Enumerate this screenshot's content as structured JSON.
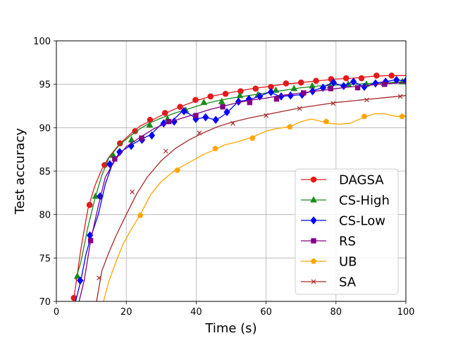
{
  "chart_data": {
    "type": "line",
    "xlabel": "Time (s)",
    "ylabel": "Test accuracy",
    "xlim": [
      0,
      100
    ],
    "ylim": [
      70,
      100
    ],
    "xticks": [
      0,
      20,
      40,
      60,
      80,
      100
    ],
    "yticks": [
      70,
      75,
      80,
      85,
      90,
      95,
      100
    ],
    "grid": true,
    "legend_position": "lower-right",
    "series": [
      {
        "name": "DAGSA",
        "color": "#e31a1c",
        "marker": "circle",
        "x": [
          5,
          7,
          9,
          11,
          13,
          15,
          18,
          21,
          24,
          27,
          30,
          33,
          36,
          40,
          44,
          48,
          52,
          56,
          60,
          65,
          70,
          75,
          80,
          85,
          90,
          95,
          100
        ],
        "y": [
          70.3,
          76,
          80.6,
          83.3,
          85.2,
          86.6,
          88.1,
          89.2,
          90.2,
          90.8,
          91.4,
          92,
          92.5,
          93.1,
          93.6,
          93.9,
          94.2,
          94.5,
          94.7,
          95,
          95.2,
          95.4,
          95.6,
          95.7,
          95.9,
          96,
          96
        ],
        "marker_x": [
          5.0,
          9.5,
          13.8,
          18.2,
          22.5,
          26.8,
          31.1,
          35.4,
          39.8,
          44.1,
          48.4,
          52.7,
          57.0,
          61.4,
          65.7,
          70.0,
          74.3,
          78.6,
          82.9,
          87.3,
          91.6,
          95.9
        ],
        "marker_y": [
          70.4,
          81.1,
          85.7,
          88.2,
          89.6,
          90.9,
          91.7,
          92.4,
          93.2,
          93.6,
          93.9,
          94.2,
          94.5,
          94.7,
          95.1,
          95.2,
          95.4,
          95.6,
          95.7,
          95.7,
          96.0,
          96.0
        ]
      },
      {
        "name": "CS-High",
        "color": "#1a8a1a",
        "marker": "triangle",
        "x": [
          5.5,
          7,
          9,
          11,
          13,
          15,
          18,
          21,
          24,
          27,
          30,
          34,
          38,
          42,
          46,
          50,
          55,
          60,
          65,
          70,
          75,
          80,
          85,
          90,
          95,
          100
        ],
        "y": [
          72.5,
          74.5,
          78.5,
          81.8,
          84.5,
          86.5,
          88,
          89,
          89.9,
          90.6,
          91.1,
          91.7,
          92.2,
          92.7,
          93.1,
          93.4,
          93.7,
          94,
          94.3,
          94.6,
          94.8,
          94.9,
          95,
          95.1,
          95.2,
          95.3
        ],
        "marker_x": [
          6.0,
          11.2,
          16.3,
          21.5,
          26.7,
          31.8,
          37.0,
          42.2,
          47.3,
          52.5,
          57.7,
          62.8,
          68.0,
          73.2,
          78.3,
          83.5,
          88.7,
          93.8,
          99.0
        ],
        "marker_y": [
          72.9,
          82.1,
          86.8,
          88.6,
          90.3,
          91.0,
          92.0,
          92.9,
          93.0,
          93.7,
          93.8,
          94.3,
          94.5,
          94.8,
          94.8,
          95.0,
          95.0,
          95.1,
          95.3
        ]
      },
      {
        "name": "CS-Low",
        "color": "#0000ff",
        "marker": "diamond",
        "x": [
          5.5,
          7,
          8.5,
          10,
          12,
          14,
          16,
          18,
          21,
          24,
          27,
          30,
          33,
          36,
          38,
          40,
          42.6,
          45.5,
          47,
          49,
          52,
          55,
          58,
          61,
          64,
          67,
          70,
          73,
          76,
          79,
          82,
          85,
          88,
          91,
          94,
          97,
          100
        ],
        "y": [
          70,
          72.4,
          75.5,
          77.6,
          80,
          83.5,
          85.8,
          87.1,
          87.9,
          88.6,
          89.2,
          90.4,
          90.7,
          91.9,
          91.6,
          91.0,
          91.2,
          90.9,
          91.2,
          91.8,
          93.0,
          93.2,
          93.6,
          94.1,
          93.6,
          93.7,
          93.8,
          94.2,
          94.6,
          95.2,
          94.8,
          95.3,
          94.7,
          95.1,
          95.3,
          95.5,
          95.4
        ],
        "marker_x": [
          6.8,
          9.6,
          12.5,
          15.3,
          18.1,
          21.4,
          24.5,
          27.3,
          30.7,
          33.7,
          36.5,
          39.9,
          42.7,
          45.6,
          48.8,
          52.1,
          55.1,
          58.2,
          61.4,
          64.3,
          67.0,
          70.3,
          73.3,
          76.3,
          79.3,
          82.2,
          85.0,
          88.1,
          91.3,
          94.2,
          97.3,
          100.0
        ],
        "marker_y": [
          72.4,
          77.6,
          82.1,
          85.8,
          87.2,
          87.9,
          88.6,
          89.1,
          90.5,
          90.7,
          91.9,
          91.0,
          91.2,
          90.9,
          91.8,
          93.0,
          93.3,
          93.6,
          94.1,
          93.6,
          93.7,
          93.8,
          94.2,
          94.6,
          95.2,
          94.8,
          95.3,
          94.7,
          95.1,
          95.3,
          95.5,
          95.4
        ]
      },
      {
        "name": "RS",
        "color": "#800080",
        "marker": "square",
        "x": [
          6.5,
          8,
          9.8,
          12,
          14,
          17,
          20,
          24,
          28,
          32,
          36,
          40,
          44,
          48,
          52,
          56,
          60,
          64,
          68,
          72,
          76,
          80,
          84,
          88,
          92,
          96,
          100
        ],
        "y": [
          70,
          72.5,
          77,
          81,
          84.3,
          86.4,
          87.8,
          88.9,
          89.9,
          90.6,
          91.1,
          91.6,
          92.1,
          92.5,
          92.9,
          93.2,
          93.4,
          93.7,
          93.9,
          94.1,
          94.3,
          94.5,
          94.7,
          94.8,
          95,
          95.1,
          95.2
        ],
        "marker_x": [
          9.8,
          16.7,
          24.4,
          32.2,
          39.9,
          47.6,
          55.3,
          63.0,
          70.7,
          78.5,
          86.2,
          93.9
        ],
        "marker_y": [
          77.0,
          86.4,
          88.8,
          90.7,
          91.4,
          92.4,
          92.9,
          93.3,
          94.0,
          94.5,
          94.6,
          95.0
        ]
      },
      {
        "name": "UB",
        "color": "#ffa500",
        "marker": "pentagon",
        "x": [
          13.5,
          15,
          17,
          19,
          21,
          24,
          27,
          30,
          34,
          38,
          42,
          45.5,
          48,
          52,
          56,
          60,
          63,
          66.8,
          70,
          73,
          76,
          78,
          81,
          84,
          88,
          91,
          94,
          97,
          100
        ],
        "y": [
          70,
          72.3,
          74.5,
          76.5,
          78,
          80,
          82.3,
          83.8,
          85.1,
          86,
          86.9,
          87.5,
          88,
          88.4,
          88.9,
          89.6,
          89.9,
          90.1,
          90.7,
          91,
          90.7,
          90.5,
          90.4,
          90.5,
          91.2,
          91.6,
          91.6,
          91.3,
          91.3
        ],
        "marker_x": [
          24.0,
          34.6,
          45.5,
          56.1,
          66.8,
          77.2,
          88.1,
          98.9
        ],
        "marker_y": [
          79.9,
          85.1,
          87.6,
          88.8,
          90.1,
          90.7,
          91.3,
          91.3
        ]
      },
      {
        "name": "SA",
        "color": "#a52a2a",
        "marker": "x",
        "x": [
          11.5,
          13,
          15,
          17,
          20,
          23,
          26,
          30,
          34,
          38,
          42,
          46,
          50,
          55,
          60,
          65,
          70,
          75,
          80,
          85,
          90,
          95,
          100
        ],
        "y": [
          70,
          73.5,
          75.6,
          77.5,
          80,
          82.4,
          84.3,
          86.2,
          87.6,
          88.6,
          89.4,
          90.1,
          90.6,
          91.1,
          91.5,
          91.9,
          92.3,
          92.6,
          92.9,
          93.1,
          93.3,
          93.5,
          93.7
        ],
        "marker_x": [
          12.2,
          21.7,
          31.3,
          40.9,
          50.5,
          60.0,
          69.6,
          79.2,
          88.8,
          98.4
        ],
        "marker_y": [
          72.7,
          82.6,
          87.3,
          89.4,
          90.5,
          91.4,
          92.2,
          92.8,
          93.2,
          93.6
        ]
      }
    ]
  }
}
